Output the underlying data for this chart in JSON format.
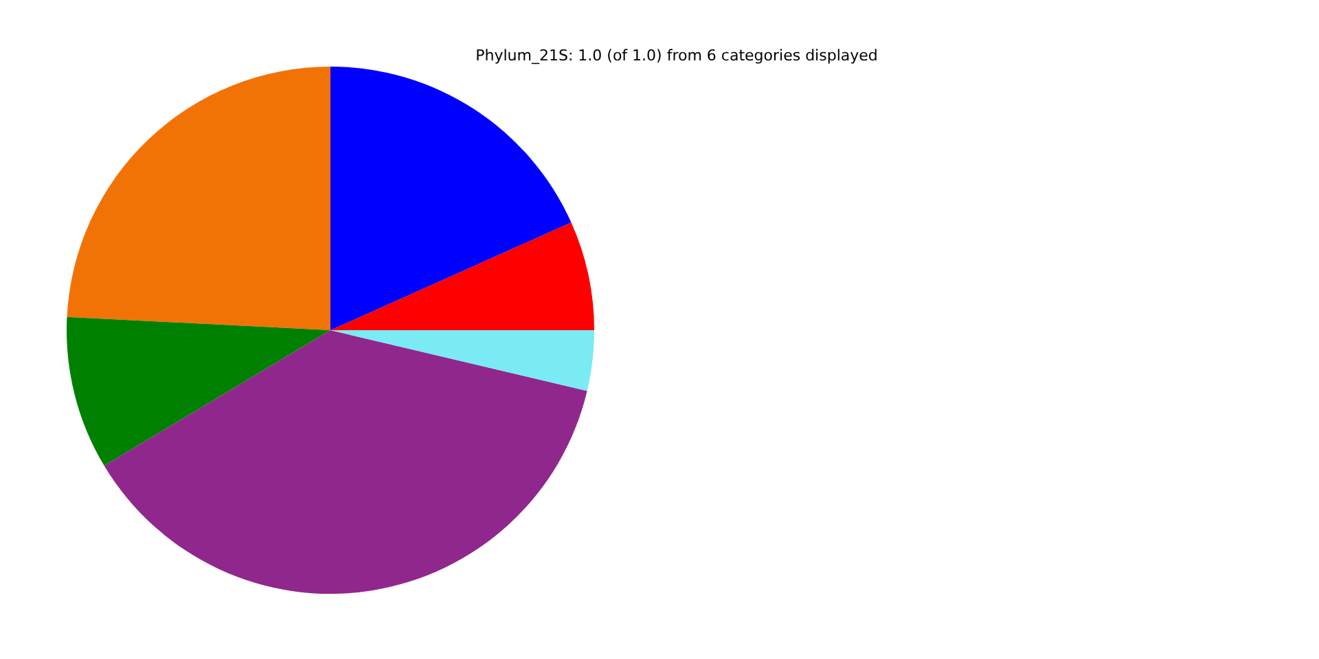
{
  "chart_data": {
    "type": "pie",
    "title": "Phylum_21S: 1.0 (of 1.0) from 6 categories displayed",
    "categories": [
      null,
      null,
      null,
      null,
      null,
      null
    ],
    "values": [
      6.7,
      18.3,
      24.2,
      9.4,
      37.7,
      3.7
    ],
    "colors": [
      "#ff0000",
      "#0000ff",
      "#f27305",
      "#008000",
      "#90278c",
      "#7aeaf4"
    ]
  }
}
